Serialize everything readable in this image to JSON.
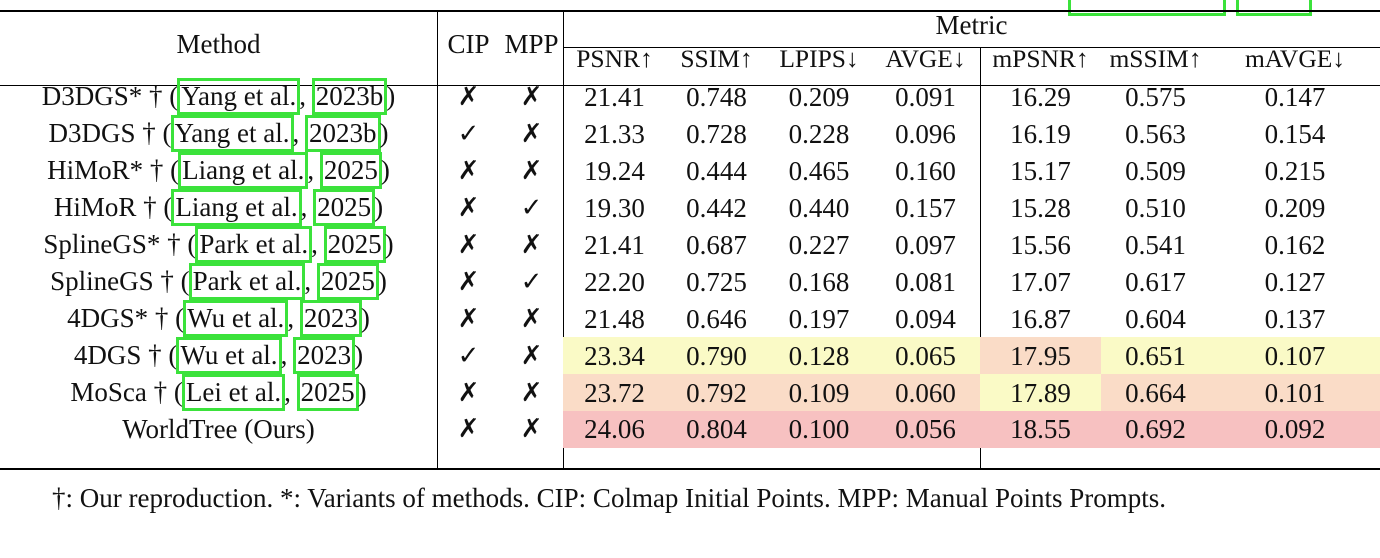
{
  "table": {
    "header": {
      "method": "Method",
      "cip": "CIP",
      "mpp": "MPP",
      "metric_group": "Metric",
      "metrics": [
        "PSNR↑",
        "SSIM↑",
        "LPIPS↓",
        "AVGE↓",
        "mPSNR↑",
        "mSSIM↑",
        "mAVGE↓"
      ]
    },
    "rows": [
      {
        "method": "D3DGS* † (",
        "cite_author": "Yang et al.",
        "cite_year": "2023b",
        "suffix": ")",
        "cip": "✗",
        "mpp": "✗",
        "values": [
          "21.41",
          "0.748",
          "0.209",
          "0.091",
          "16.29",
          "0.575",
          "0.147"
        ]
      },
      {
        "method": "D3DGS † (",
        "cite_author": "Yang et al.",
        "cite_year": "2023b",
        "suffix": ")",
        "cip": "✓",
        "mpp": "✗",
        "values": [
          "21.33",
          "0.728",
          "0.228",
          "0.096",
          "16.19",
          "0.563",
          "0.154"
        ]
      },
      {
        "method": "HiMoR* † (",
        "cite_author": "Liang et al.",
        "cite_year": "2025",
        "suffix": ")",
        "cip": "✗",
        "mpp": "✗",
        "values": [
          "19.24",
          "0.444",
          "0.465",
          "0.160",
          "15.17",
          "0.509",
          "0.215"
        ]
      },
      {
        "method": "HiMoR † (",
        "cite_author": "Liang et al.",
        "cite_year": "2025",
        "suffix": ")",
        "cip": "✗",
        "mpp": "✓",
        "values": [
          "19.30",
          "0.442",
          "0.440",
          "0.157",
          "15.28",
          "0.510",
          "0.209"
        ]
      },
      {
        "method": "SplineGS* † (",
        "cite_author": "Park et al.",
        "cite_year": "2025",
        "suffix": ")",
        "cip": "✗",
        "mpp": "✗",
        "values": [
          "21.41",
          "0.687",
          "0.227",
          "0.097",
          "15.56",
          "0.541",
          "0.162"
        ]
      },
      {
        "method": "SplineGS † (",
        "cite_author": "Park et al.",
        "cite_year": "2025",
        "suffix": ")",
        "cip": "✗",
        "mpp": "✓",
        "values": [
          "22.20",
          "0.725",
          "0.168",
          "0.081",
          "17.07",
          "0.617",
          "0.127"
        ]
      },
      {
        "method": "4DGS* † (",
        "cite_author": "Wu et al.",
        "cite_year": "2023",
        "suffix": ")",
        "cip": "✗",
        "mpp": "✗",
        "values": [
          "21.48",
          "0.646",
          "0.197",
          "0.094",
          "16.87",
          "0.604",
          "0.137"
        ]
      },
      {
        "method": "4DGS † (",
        "cite_author": "Wu et al.",
        "cite_year": "2023",
        "suffix": ")",
        "cip": "✓",
        "mpp": "✗",
        "values": [
          "23.34",
          "0.790",
          "0.128",
          "0.065",
          "17.95",
          "0.651",
          "0.107"
        ]
      },
      {
        "method": "MoSca † (",
        "cite_author": "Lei et al.",
        "cite_year": "2025",
        "suffix": ")",
        "cip": "✗",
        "mpp": "✗",
        "values": [
          "23.72",
          "0.792",
          "0.109",
          "0.060",
          "17.89",
          "0.664",
          "0.101"
        ]
      },
      {
        "method": "WorldTree (Ours)",
        "cite_author": "",
        "cite_year": "",
        "suffix": "",
        "cip": "✗",
        "mpp": "✗",
        "values": [
          "24.06",
          "0.804",
          "0.100",
          "0.056",
          "18.55",
          "0.692",
          "0.092"
        ]
      }
    ],
    "highlight_colors": {
      "best": "#f7c1c1",
      "second": "#fadcc7",
      "third": "#fafac6"
    }
  },
  "footnote": {
    "text": "†: Our reproduction. *: Variants of methods. CIP: Colmap Initial Points. MPP: Manual Points Prompts."
  }
}
